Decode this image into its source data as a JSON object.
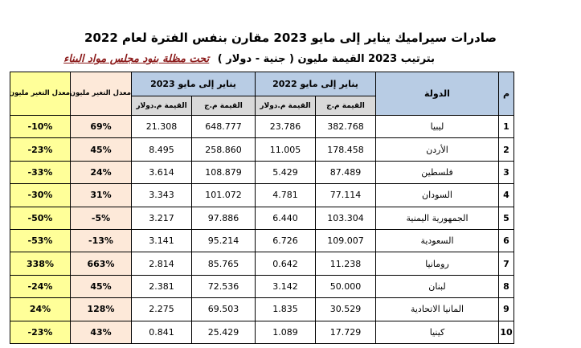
{
  "title": "صادرات سيراميك يناير إلى مايو 2023 مقارن بنفس الفترة لعام 2022",
  "subtitle": {
    "main": "بترتيب 2023 القيمة مليون ( جنية - دولار )",
    "underlined": "تحت مظلة بنود مجلس مواد البناء"
  },
  "headers": {
    "index": "م",
    "country": "الدولة",
    "period_2022": "يناير إلى مايو 2022",
    "period_2023": "يناير إلى مايو 2023",
    "value_egp": "القيمة م.ج",
    "value_usd": "القيمة م.دولار",
    "rate_egp": "معدل التغير مليون جنية 2023-2022",
    "rate_usd": "معدل التغير مليون دولار 2023-2022"
  },
  "rows": [
    {
      "idx": "1",
      "country": "ليبيا",
      "egp22": "382.768",
      "usd22": "23.786",
      "egp23": "648.777",
      "usd23": "21.308",
      "rate_egp": "69%",
      "rate_usd": "-10%"
    },
    {
      "idx": "2",
      "country": "الأردن",
      "egp22": "178.458",
      "usd22": "11.005",
      "egp23": "258.860",
      "usd23": "8.495",
      "rate_egp": "45%",
      "rate_usd": "-23%"
    },
    {
      "idx": "3",
      "country": "فلسطين",
      "egp22": "87.489",
      "usd22": "5.429",
      "egp23": "108.879",
      "usd23": "3.614",
      "rate_egp": "24%",
      "rate_usd": "-33%"
    },
    {
      "idx": "4",
      "country": "السودان",
      "egp22": "77.114",
      "usd22": "4.781",
      "egp23": "101.072",
      "usd23": "3.343",
      "rate_egp": "31%",
      "rate_usd": "-30%"
    },
    {
      "idx": "5",
      "country": "الجمهورية اليمنية",
      "egp22": "103.304",
      "usd22": "6.440",
      "egp23": "97.886",
      "usd23": "3.217",
      "rate_egp": "-5%",
      "rate_usd": "-50%"
    },
    {
      "idx": "6",
      "country": "السعودية",
      "egp22": "109.007",
      "usd22": "6.726",
      "egp23": "95.214",
      "usd23": "3.141",
      "rate_egp": "-13%",
      "rate_usd": "-53%"
    },
    {
      "idx": "7",
      "country": "رومانيا",
      "egp22": "11.238",
      "usd22": "0.642",
      "egp23": "85.765",
      "usd23": "2.814",
      "rate_egp": "663%",
      "rate_usd": "338%"
    },
    {
      "idx": "8",
      "country": "لبنان",
      "egp22": "50.000",
      "usd22": "3.142",
      "egp23": "72.536",
      "usd23": "2.381",
      "rate_egp": "45%",
      "rate_usd": "-24%"
    },
    {
      "idx": "9",
      "country": "المانيا الاتحادية",
      "egp22": "30.529",
      "usd22": "1.835",
      "egp23": "69.503",
      "usd23": "2.275",
      "rate_egp": "128%",
      "rate_usd": "24%"
    },
    {
      "idx": "10",
      "country": "كينيا",
      "egp22": "17.729",
      "usd22": "1.089",
      "egp23": "25.429",
      "usd23": "0.841",
      "rate_egp": "43%",
      "rate_usd": "-23%"
    }
  ],
  "colors": {
    "header_blue": "#b8cce4",
    "header_grey": "#d9d9d9",
    "rate_egp_fill": "#fde9d9",
    "rate_usd_fill": "#ffff99",
    "subtitle_accent": "#8b1a1a"
  }
}
